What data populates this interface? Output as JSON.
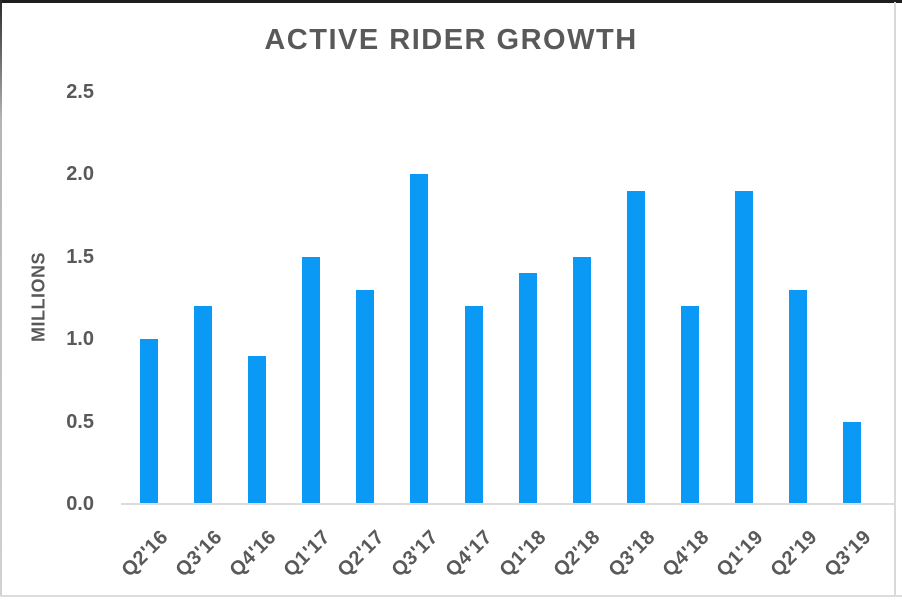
{
  "frame": {
    "top_border_color": "#1e1e1e",
    "side_border_color": "#d9d9d9",
    "bottom_border_color": "#dcdcdc"
  },
  "chart_data": {
    "type": "bar",
    "title": "ACTIVE RIDER GROWTH",
    "xlabel": "",
    "ylabel": "MILLIONS",
    "categories": [
      "Q2'16",
      "Q3'16",
      "Q4'16",
      "Q1'17",
      "Q2'17",
      "Q3'17",
      "Q4'17",
      "Q1'18",
      "Q2'18",
      "Q3'18",
      "Q4'18",
      "Q1'19",
      "Q2'19",
      "Q3'19"
    ],
    "values": [
      1.0,
      1.2,
      0.9,
      1.5,
      1.3,
      2.0,
      1.2,
      1.4,
      1.5,
      1.9,
      1.2,
      1.9,
      1.3,
      0.5
    ],
    "ylim": [
      0,
      2.5
    ],
    "yticks": [
      0.0,
      0.5,
      1.0,
      1.5,
      2.0,
      2.5
    ],
    "ytick_labels": [
      "0.0",
      "0.5",
      "1.0",
      "1.5",
      "2.0",
      "2.5"
    ],
    "grid": false,
    "legend": false,
    "bar_color": "#0a99f5",
    "axis_line_color": "#dcdcdc",
    "text_color": "#595959"
  }
}
